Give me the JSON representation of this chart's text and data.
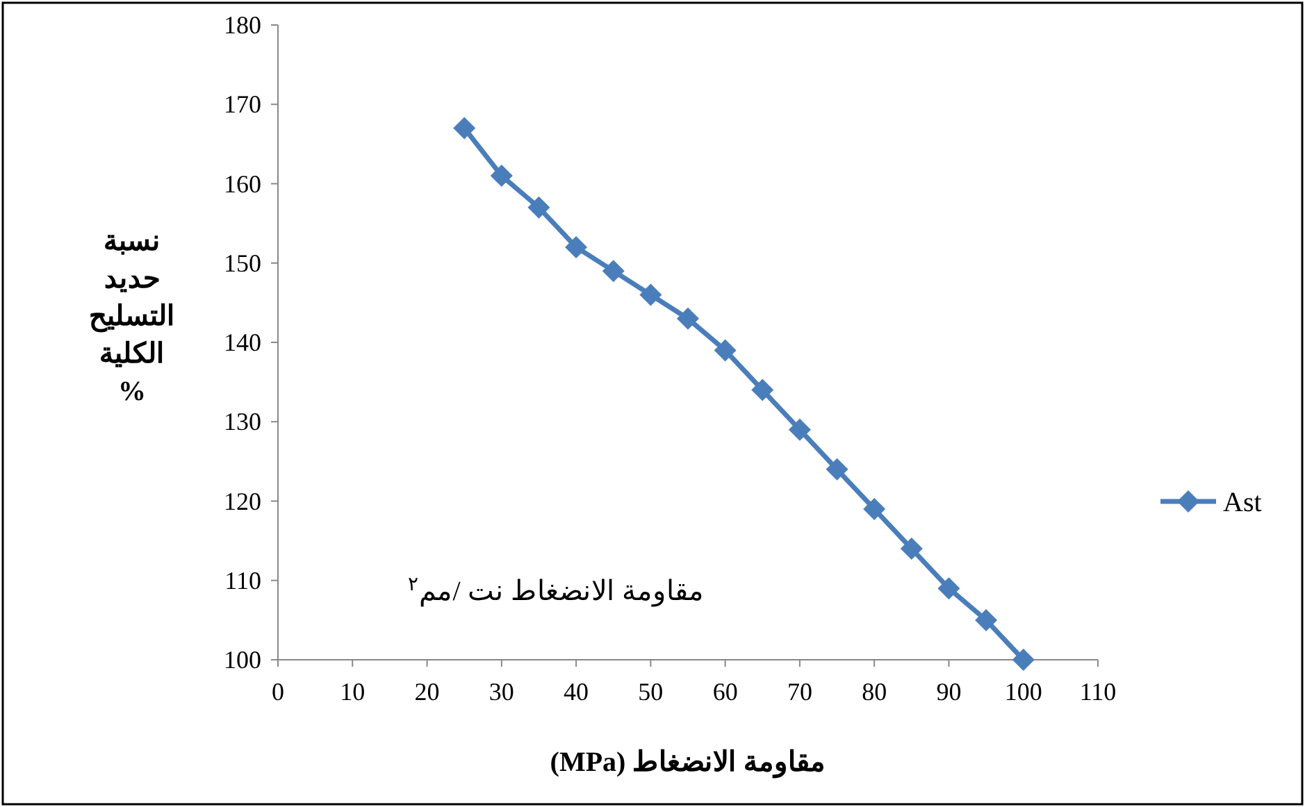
{
  "chart_data": {
    "type": "line",
    "xlabel": "مقاومة الانضغاط (MPa)",
    "ylabel": "نسبة حديد التسليح الكلية %",
    "annotations": [
      "مقاومة الانضغاط نت /مم$^{٢}$"
    ],
    "x": [
      25,
      30,
      35,
      40,
      45,
      50,
      55,
      60,
      65,
      70,
      75,
      80,
      85,
      90,
      95,
      100
    ],
    "series": [
      {
        "name": "Ast",
        "color": "#4a7ebb",
        "values": [
          167,
          161,
          157,
          152,
          149,
          146,
          143,
          139,
          134,
          129,
          124,
          119,
          114,
          109,
          105,
          100
        ]
      }
    ],
    "xlim": [
      0,
      110
    ],
    "xticks": [
      0,
      10,
      20,
      30,
      40,
      50,
      60,
      70,
      80,
      90,
      100,
      110
    ],
    "ylim": [
      100,
      180
    ],
    "yticks": [
      100,
      110,
      120,
      130,
      140,
      150,
      160,
      170,
      180
    ],
    "grid": false,
    "legend": "right",
    "marker": "diamond",
    "line_style": "solid"
  }
}
